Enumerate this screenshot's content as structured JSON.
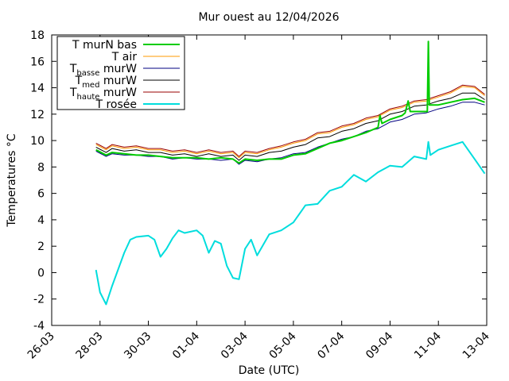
{
  "chart_data": {
    "type": "line",
    "title": "Mur ouest au 12/04/2026",
    "xlabel": "Date (UTC)",
    "ylabel": "Temperatures °C",
    "xlim": [
      "2026-03-26",
      "2026-04-13"
    ],
    "ylim": [
      -4,
      18
    ],
    "x_ticks": [
      "26-03",
      "28-03",
      "30-03",
      "01-04",
      "03-04",
      "05-04",
      "07-04",
      "09-04",
      "11-04",
      "13-04"
    ],
    "y_ticks": [
      "-4",
      "-2",
      "0",
      "2",
      "4",
      "6",
      "8",
      "10",
      "12",
      "14",
      "16",
      "18"
    ],
    "grid": false,
    "legend_position": "top-left",
    "series": [
      {
        "name": "T murN bas",
        "color": "#00cc00",
        "points": [
          [
            "2026-03-27T20:00",
            9.3
          ],
          [
            "2026-03-28T06:00",
            8.9
          ],
          [
            "2026-03-28T12:00",
            9.1
          ],
          [
            "2026-03-29T00:00",
            9.0
          ],
          [
            "2026-03-29T12:00",
            8.9
          ],
          [
            "2026-03-30T00:00",
            8.9
          ],
          [
            "2026-03-30T12:00",
            8.8
          ],
          [
            "2026-03-31T00:00",
            8.7
          ],
          [
            "2026-03-31T12:00",
            8.7
          ],
          [
            "2026-04-01T00:00",
            8.7
          ],
          [
            "2026-04-01T12:00",
            8.6
          ],
          [
            "2026-04-02T00:00",
            8.7
          ],
          [
            "2026-04-02T12:00",
            8.6
          ],
          [
            "2026-04-02T18:00",
            8.3
          ],
          [
            "2026-04-03T00:00",
            8.6
          ],
          [
            "2026-04-03T12:00",
            8.5
          ],
          [
            "2026-04-04T00:00",
            8.6
          ],
          [
            "2026-04-04T12:00",
            8.6
          ],
          [
            "2026-04-05T00:00",
            8.9
          ],
          [
            "2026-04-05T12:00",
            9.0
          ],
          [
            "2026-04-06T00:00",
            9.4
          ],
          [
            "2026-04-06T12:00",
            9.8
          ],
          [
            "2026-04-07T00:00",
            10.0
          ],
          [
            "2026-04-07T12:00",
            10.3
          ],
          [
            "2026-04-08T00:00",
            10.6
          ],
          [
            "2026-04-08T12:00",
            11.0
          ],
          [
            "2026-04-08T14:00",
            11.9
          ],
          [
            "2026-04-08T16:00",
            11.3
          ],
          [
            "2026-04-09T00:00",
            11.6
          ],
          [
            "2026-04-09T12:00",
            11.9
          ],
          [
            "2026-04-09T15:00",
            12.1
          ],
          [
            "2026-04-09T18:00",
            13.0
          ],
          [
            "2026-04-09T20:00",
            12.2
          ],
          [
            "2026-04-10T06:00",
            12.2
          ],
          [
            "2026-04-10T13:00",
            12.2
          ],
          [
            "2026-04-10T14:00",
            17.5
          ],
          [
            "2026-04-10T15:00",
            12.7
          ],
          [
            "2026-04-11T00:00",
            12.7
          ],
          [
            "2026-04-11T12:00",
            12.9
          ],
          [
            "2026-04-12T00:00",
            13.1
          ],
          [
            "2026-04-12T12:00",
            13.2
          ],
          [
            "2026-04-12T22:00",
            12.9
          ]
        ]
      },
      {
        "name": "T air",
        "color": "#ff9900",
        "points": [
          [
            "2026-03-27T20:00",
            9.7
          ],
          [
            "2026-03-28T06:00",
            9.3
          ],
          [
            "2026-03-28T12:00",
            9.6
          ],
          [
            "2026-03-29T00:00",
            9.4
          ],
          [
            "2026-03-29T12:00",
            9.5
          ],
          [
            "2026-03-30T00:00",
            9.3
          ],
          [
            "2026-03-30T12:00",
            9.3
          ],
          [
            "2026-03-31T00:00",
            9.1
          ],
          [
            "2026-03-31T12:00",
            9.2
          ],
          [
            "2026-04-01T00:00",
            9.0
          ],
          [
            "2026-04-01T12:00",
            9.2
          ],
          [
            "2026-04-02T00:00",
            9.0
          ],
          [
            "2026-04-02T12:00",
            9.1
          ],
          [
            "2026-04-02T18:00",
            8.7
          ],
          [
            "2026-04-03T00:00",
            9.1
          ],
          [
            "2026-04-03T12:00",
            9.0
          ],
          [
            "2026-04-04T00:00",
            9.3
          ],
          [
            "2026-04-04T12:00",
            9.5
          ],
          [
            "2026-04-05T00:00",
            9.8
          ],
          [
            "2026-04-05T12:00",
            10.0
          ],
          [
            "2026-04-06T00:00",
            10.5
          ],
          [
            "2026-04-06T12:00",
            10.6
          ],
          [
            "2026-04-07T00:00",
            11.0
          ],
          [
            "2026-04-07T12:00",
            11.2
          ],
          [
            "2026-04-08T00:00",
            11.6
          ],
          [
            "2026-04-08T12:00",
            11.8
          ],
          [
            "2026-04-09T00:00",
            12.3
          ],
          [
            "2026-04-09T12:00",
            12.5
          ],
          [
            "2026-04-10T00:00",
            12.9
          ],
          [
            "2026-04-10T12:00",
            13.0
          ],
          [
            "2026-04-11T00:00",
            13.3
          ],
          [
            "2026-04-11T12:00",
            13.6
          ],
          [
            "2026-04-12T00:00",
            14.1
          ],
          [
            "2026-04-12T12:00",
            14.0
          ],
          [
            "2026-04-12T22:00",
            13.4
          ]
        ]
      },
      {
        "name": "T{basse} murW",
        "color": "#000080",
        "points": [
          [
            "2026-03-27T20:00",
            9.2
          ],
          [
            "2026-03-28T06:00",
            8.8
          ],
          [
            "2026-03-28T12:00",
            9.0
          ],
          [
            "2026-03-29T00:00",
            8.9
          ],
          [
            "2026-03-29T12:00",
            8.9
          ],
          [
            "2026-03-30T00:00",
            8.8
          ],
          [
            "2026-03-30T12:00",
            8.8
          ],
          [
            "2026-03-31T00:00",
            8.6
          ],
          [
            "2026-03-31T12:00",
            8.7
          ],
          [
            "2026-04-01T00:00",
            8.6
          ],
          [
            "2026-04-01T12:00",
            8.6
          ],
          [
            "2026-04-02T00:00",
            8.5
          ],
          [
            "2026-04-02T12:00",
            8.6
          ],
          [
            "2026-04-02T18:00",
            8.2
          ],
          [
            "2026-04-03T00:00",
            8.5
          ],
          [
            "2026-04-03T12:00",
            8.4
          ],
          [
            "2026-04-04T00:00",
            8.6
          ],
          [
            "2026-04-04T12:00",
            8.7
          ],
          [
            "2026-04-05T00:00",
            9.0
          ],
          [
            "2026-04-05T12:00",
            9.1
          ],
          [
            "2026-04-06T00:00",
            9.5
          ],
          [
            "2026-04-06T12:00",
            9.8
          ],
          [
            "2026-04-07T00:00",
            10.1
          ],
          [
            "2026-04-07T12:00",
            10.3
          ],
          [
            "2026-04-08T00:00",
            10.7
          ],
          [
            "2026-04-08T12:00",
            10.9
          ],
          [
            "2026-04-09T00:00",
            11.4
          ],
          [
            "2026-04-09T12:00",
            11.6
          ],
          [
            "2026-04-10T00:00",
            12.0
          ],
          [
            "2026-04-10T12:00",
            12.1
          ],
          [
            "2026-04-11T00:00",
            12.4
          ],
          [
            "2026-04-11T12:00",
            12.6
          ],
          [
            "2026-04-12T00:00",
            12.9
          ],
          [
            "2026-04-12T12:00",
            12.9
          ],
          [
            "2026-04-12T22:00",
            12.7
          ]
        ]
      },
      {
        "name": "T{med} murW",
        "color": "#000000",
        "points": [
          [
            "2026-03-27T20:00",
            9.5
          ],
          [
            "2026-03-28T06:00",
            9.1
          ],
          [
            "2026-03-28T12:00",
            9.4
          ],
          [
            "2026-03-29T00:00",
            9.2
          ],
          [
            "2026-03-29T12:00",
            9.3
          ],
          [
            "2026-03-30T00:00",
            9.1
          ],
          [
            "2026-03-30T12:00",
            9.1
          ],
          [
            "2026-03-31T00:00",
            8.9
          ],
          [
            "2026-03-31T12:00",
            9.0
          ],
          [
            "2026-04-01T00:00",
            8.8
          ],
          [
            "2026-04-01T12:00",
            9.0
          ],
          [
            "2026-04-02T00:00",
            8.8
          ],
          [
            "2026-04-02T12:00",
            8.9
          ],
          [
            "2026-04-02T18:00",
            8.5
          ],
          [
            "2026-04-03T00:00",
            8.9
          ],
          [
            "2026-04-03T12:00",
            8.8
          ],
          [
            "2026-04-04T00:00",
            9.1
          ],
          [
            "2026-04-04T12:00",
            9.2
          ],
          [
            "2026-04-05T00:00",
            9.5
          ],
          [
            "2026-04-05T12:00",
            9.7
          ],
          [
            "2026-04-06T00:00",
            10.2
          ],
          [
            "2026-04-06T12:00",
            10.3
          ],
          [
            "2026-04-07T00:00",
            10.7
          ],
          [
            "2026-04-07T12:00",
            10.9
          ],
          [
            "2026-04-08T00:00",
            11.3
          ],
          [
            "2026-04-08T12:00",
            11.5
          ],
          [
            "2026-04-09T00:00",
            12.0
          ],
          [
            "2026-04-09T12:00",
            12.2
          ],
          [
            "2026-04-10T00:00",
            12.6
          ],
          [
            "2026-04-10T12:00",
            12.7
          ],
          [
            "2026-04-11T00:00",
            13.0
          ],
          [
            "2026-04-11T12:00",
            13.2
          ],
          [
            "2026-04-12T00:00",
            13.6
          ],
          [
            "2026-04-12T12:00",
            13.6
          ],
          [
            "2026-04-12T22:00",
            13.1
          ]
        ]
      },
      {
        "name": "T{haute} murW",
        "color": "#990000",
        "points": [
          [
            "2026-03-27T20:00",
            9.8
          ],
          [
            "2026-03-28T06:00",
            9.4
          ],
          [
            "2026-03-28T12:00",
            9.7
          ],
          [
            "2026-03-29T00:00",
            9.5
          ],
          [
            "2026-03-29T12:00",
            9.6
          ],
          [
            "2026-03-30T00:00",
            9.4
          ],
          [
            "2026-03-30T12:00",
            9.4
          ],
          [
            "2026-03-31T00:00",
            9.2
          ],
          [
            "2026-03-31T12:00",
            9.3
          ],
          [
            "2026-04-01T00:00",
            9.1
          ],
          [
            "2026-04-01T12:00",
            9.3
          ],
          [
            "2026-04-02T00:00",
            9.1
          ],
          [
            "2026-04-02T12:00",
            9.2
          ],
          [
            "2026-04-02T18:00",
            8.8
          ],
          [
            "2026-04-03T00:00",
            9.2
          ],
          [
            "2026-04-03T12:00",
            9.1
          ],
          [
            "2026-04-04T00:00",
            9.4
          ],
          [
            "2026-04-04T12:00",
            9.6
          ],
          [
            "2026-04-05T00:00",
            9.9
          ],
          [
            "2026-04-05T12:00",
            10.1
          ],
          [
            "2026-04-06T00:00",
            10.6
          ],
          [
            "2026-04-06T12:00",
            10.7
          ],
          [
            "2026-04-07T00:00",
            11.1
          ],
          [
            "2026-04-07T12:00",
            11.3
          ],
          [
            "2026-04-08T00:00",
            11.7
          ],
          [
            "2026-04-08T12:00",
            11.9
          ],
          [
            "2026-04-09T00:00",
            12.4
          ],
          [
            "2026-04-09T12:00",
            12.6
          ],
          [
            "2026-04-10T00:00",
            13.0
          ],
          [
            "2026-04-10T12:00",
            13.1
          ],
          [
            "2026-04-11T00:00",
            13.4
          ],
          [
            "2026-04-11T12:00",
            13.7
          ],
          [
            "2026-04-12T00:00",
            14.2
          ],
          [
            "2026-04-12T12:00",
            14.1
          ],
          [
            "2026-04-12T22:00",
            13.5
          ]
        ]
      },
      {
        "name": "T rosée",
        "color": "#00dddd",
        "points": [
          [
            "2026-03-27T20:00",
            0.2
          ],
          [
            "2026-03-28T00:00",
            -1.5
          ],
          [
            "2026-03-28T06:00",
            -2.4
          ],
          [
            "2026-03-28T12:00",
            -1.0
          ],
          [
            "2026-03-29T00:00",
            1.5
          ],
          [
            "2026-03-29T06:00",
            2.5
          ],
          [
            "2026-03-29T12:00",
            2.7
          ],
          [
            "2026-03-30T00:00",
            2.8
          ],
          [
            "2026-03-30T06:00",
            2.5
          ],
          [
            "2026-03-30T12:00",
            1.2
          ],
          [
            "2026-03-30T18:00",
            1.8
          ],
          [
            "2026-03-31T00:00",
            2.6
          ],
          [
            "2026-03-31T06:00",
            3.2
          ],
          [
            "2026-03-31T12:00",
            3.0
          ],
          [
            "2026-04-01T00:00",
            3.2
          ],
          [
            "2026-04-01T06:00",
            2.8
          ],
          [
            "2026-04-01T12:00",
            1.5
          ],
          [
            "2026-04-01T18:00",
            2.4
          ],
          [
            "2026-04-02T00:00",
            2.2
          ],
          [
            "2026-04-02T06:00",
            0.5
          ],
          [
            "2026-04-02T12:00",
            -0.4
          ],
          [
            "2026-04-02T18:00",
            -0.5
          ],
          [
            "2026-04-03T00:00",
            1.8
          ],
          [
            "2026-04-03T06:00",
            2.5
          ],
          [
            "2026-04-03T12:00",
            1.3
          ],
          [
            "2026-04-04T00:00",
            2.9
          ],
          [
            "2026-04-04T12:00",
            3.2
          ],
          [
            "2026-04-05T00:00",
            3.8
          ],
          [
            "2026-04-05T12:00",
            5.1
          ],
          [
            "2026-04-06T00:00",
            5.2
          ],
          [
            "2026-04-06T12:00",
            6.2
          ],
          [
            "2026-04-07T00:00",
            6.5
          ],
          [
            "2026-04-07T12:00",
            7.4
          ],
          [
            "2026-04-08T00:00",
            6.9
          ],
          [
            "2026-04-08T12:00",
            7.6
          ],
          [
            "2026-04-09T00:00",
            8.1
          ],
          [
            "2026-04-09T12:00",
            8.0
          ],
          [
            "2026-04-10T00:00",
            8.8
          ],
          [
            "2026-04-10T12:00",
            8.6
          ],
          [
            "2026-04-10T14:00",
            9.9
          ],
          [
            "2026-04-10T16:00",
            8.9
          ],
          [
            "2026-04-11T00:00",
            9.3
          ],
          [
            "2026-04-11T12:00",
            9.6
          ],
          [
            "2026-04-12T00:00",
            9.9
          ],
          [
            "2026-04-12T12:00",
            8.6
          ],
          [
            "2026-04-12T22:00",
            7.5
          ]
        ]
      }
    ]
  }
}
